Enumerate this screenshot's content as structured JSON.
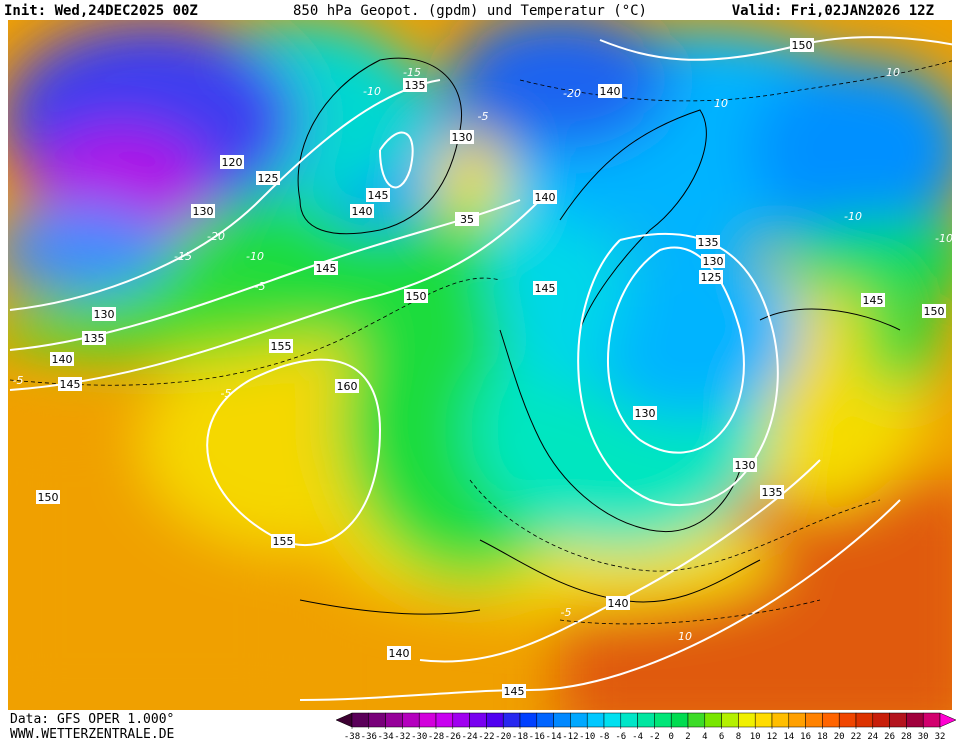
{
  "header": {
    "init": "Init: Wed,24DEC2025 00Z",
    "title": "850 hPa Geopot. (gpdm) und Temperatur (°C)",
    "valid": "Valid: Fri,02JAN2026 12Z"
  },
  "footer": {
    "data_source": "Data: GFS OPER 1.000°",
    "website": "WWW.WETTERZENTRALE.DE"
  },
  "geopotential_labels": [
    "135",
    "130",
    "120",
    "125",
    "130",
    "145",
    "140",
    "35",
    "140",
    "150",
    "140",
    "135",
    "130",
    "125",
    "145",
    "150",
    "145",
    "130",
    "135",
    "140",
    "145",
    "155",
    "160",
    "130",
    "130",
    "135",
    "150",
    "155",
    "140",
    "140",
    "145",
    "145",
    "150"
  ],
  "temperature_labels": [
    "-20",
    "-20",
    "-15",
    "-10",
    "-5",
    "-5",
    "-10",
    "-15",
    "10",
    "10",
    "-10",
    "-10",
    "-5",
    "-5",
    "-5",
    "10"
  ],
  "colorbar": {
    "ticks": [
      -38,
      -36,
      -34,
      -32,
      -30,
      -28,
      -26,
      -24,
      -22,
      -20,
      -18,
      -16,
      -14,
      -12,
      -10,
      -8,
      -6,
      -4,
      -2,
      0,
      2,
      4,
      6,
      8,
      10,
      12,
      14,
      16,
      18,
      20,
      22,
      24,
      26,
      28,
      30,
      32
    ],
    "colors": [
      "#3c0032",
      "#5a005a",
      "#78007a",
      "#96009a",
      "#b400be",
      "#d200dc",
      "#c800f0",
      "#a000f0",
      "#7800f0",
      "#5000f0",
      "#2828f0",
      "#0040ff",
      "#0064ff",
      "#0088ff",
      "#00a8ff",
      "#00c8ff",
      "#00e0f0",
      "#00e6c8",
      "#00e6a0",
      "#00e678",
      "#00dc50",
      "#3cdc28",
      "#78e600",
      "#b4f000",
      "#f0f000",
      "#ffdc00",
      "#ffbe00",
      "#ffa000",
      "#ff8200",
      "#ff6400",
      "#f04600",
      "#dc3200",
      "#c81e0a",
      "#b4141e",
      "#a0003c",
      "#d2006e",
      "#ff00d2"
    ]
  }
}
